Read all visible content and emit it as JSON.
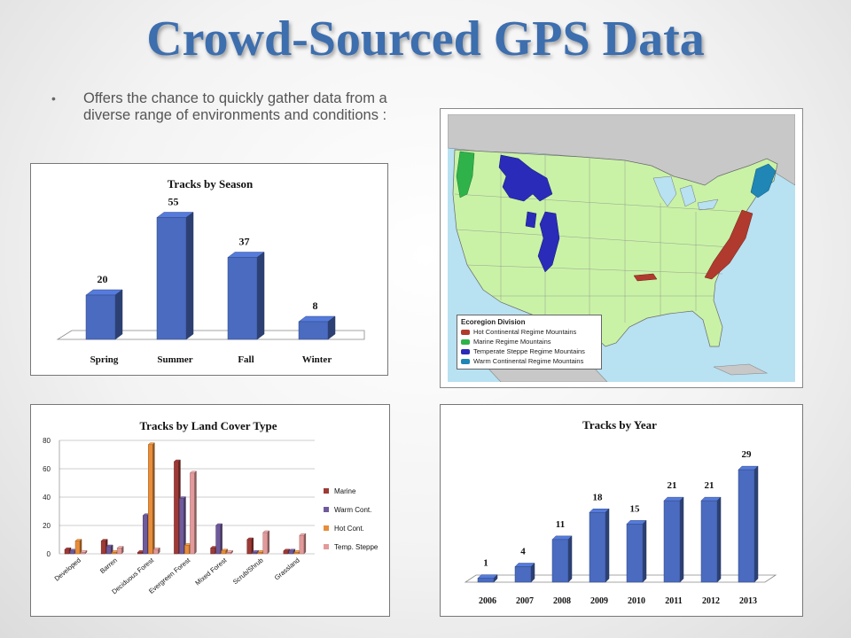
{
  "slide": {
    "title": "Crowd-Sourced GPS Data",
    "bullet": "Offers the chance to quickly gather data from a diverse range of environments and conditions :"
  },
  "map": {
    "legend_title": "Ecoregion Division",
    "legend": [
      {
        "label": "Hot Continental Regime Mountains",
        "color": "#b03a2e"
      },
      {
        "label": "Marine Regime Mountains",
        "color": "#2fb24a"
      },
      {
        "label": "Temperate Steppe Regime Mountains",
        "color": "#2a2bb8"
      },
      {
        "label": "Warm Continental Regime Mountains",
        "color": "#1f86b5"
      }
    ],
    "colors": {
      "land": "#c9f2a6",
      "water": "#b8e1f2",
      "foreign": "#c8c8c8"
    }
  },
  "chart_data": [
    {
      "type": "bar",
      "title": "Tracks by Season",
      "categories": [
        "Spring",
        "Summer",
        "Fall",
        "Winter"
      ],
      "values": [
        20,
        55,
        37,
        8
      ],
      "ylim": [
        0,
        60
      ],
      "data_labels": true,
      "grid": false,
      "color": "#4a6bbf"
    },
    {
      "type": "bar",
      "title": "Tracks by Land Cover Type",
      "categories": [
        "Developed",
        "Barren",
        "Deciduous Forest",
        "Evergreen Forest",
        "Mixed Forest",
        "Scrub/Shrub",
        "Grassland"
      ],
      "series": [
        {
          "name": "Marine",
          "color": "#9e3a36",
          "values": [
            3,
            9,
            1,
            65,
            4,
            10,
            2
          ]
        },
        {
          "name": "Warm Cont.",
          "color": "#6f5a9b",
          "values": [
            2,
            5,
            27,
            39,
            20,
            1,
            2
          ]
        },
        {
          "name": "Hot Cont.",
          "color": "#e88d3a",
          "values": [
            9,
            1,
            77,
            6,
            2,
            1,
            1
          ]
        },
        {
          "name": "Temp. Steppe",
          "color": "#e39a9a",
          "values": [
            1,
            4,
            3,
            57,
            1,
            15,
            13
          ]
        }
      ],
      "yticks": [
        0,
        20,
        40,
        60,
        80
      ],
      "ylim": [
        0,
        80
      ],
      "grid": true,
      "legend": "right"
    },
    {
      "type": "bar",
      "title": "Tracks by Year",
      "categories": [
        "2006",
        "2007",
        "2008",
        "2009",
        "2010",
        "2011",
        "2012",
        "2013"
      ],
      "values": [
        1,
        4,
        11,
        18,
        15,
        21,
        21,
        29
      ],
      "ylim": [
        0,
        32
      ],
      "data_labels": true,
      "grid": false,
      "color": "#4a6bbf"
    }
  ]
}
